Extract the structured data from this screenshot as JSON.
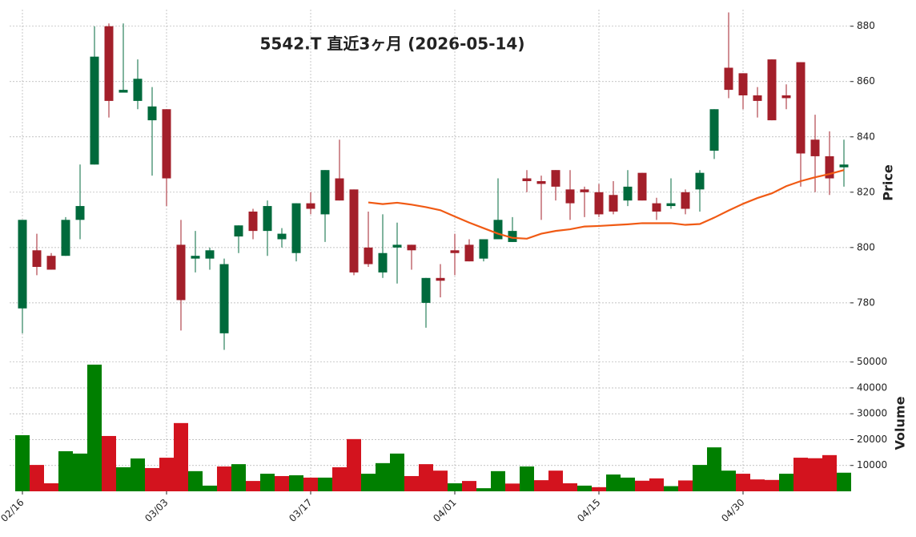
{
  "chart_data": {
    "type": "candlestick",
    "title": "5542.T  直近3ヶ月 (2026-05-14)",
    "ylabel": "Price",
    "categories": [
      "02/16",
      null,
      null,
      null,
      null,
      null,
      null,
      null,
      null,
      null,
      "03/03",
      null,
      null,
      null,
      null,
      null,
      null,
      null,
      null,
      null,
      "03/17",
      null,
      null,
      null,
      null,
      null,
      null,
      null,
      null,
      null,
      "04/01",
      null,
      null,
      null,
      null,
      null,
      null,
      null,
      null,
      null,
      "04/15",
      null,
      null,
      null,
      null,
      null,
      null,
      null,
      null,
      null,
      "04/30",
      null,
      null,
      null,
      null,
      null,
      null,
      null
    ],
    "open": [
      778,
      799,
      797,
      797,
      810,
      830,
      880,
      856,
      853,
      846,
      850,
      801,
      796,
      796,
      769,
      804,
      813,
      806,
      803,
      798,
      816,
      812,
      825,
      821,
      800,
      791,
      800,
      801,
      780,
      789,
      799,
      801,
      796,
      803,
      802,
      825,
      824,
      828,
      821,
      821,
      820,
      819,
      817,
      827,
      816,
      815,
      820,
      821,
      835,
      865,
      863,
      855,
      868,
      855,
      867,
      839,
      833,
      829
    ],
    "high": [
      810,
      805,
      798,
      811,
      830,
      880,
      881,
      881,
      868,
      858,
      850,
      810,
      806,
      800,
      796,
      808,
      814,
      817,
      807,
      816,
      820,
      828,
      839,
      821,
      813,
      812,
      809,
      801,
      789,
      794,
      805,
      803,
      803,
      825,
      811,
      828,
      826,
      828,
      828,
      822,
      823,
      824,
      828,
      827,
      818,
      825,
      821,
      828,
      850,
      885,
      863,
      858,
      868,
      859,
      867,
      848,
      842,
      839
    ],
    "low": [
      769,
      790,
      792,
      797,
      803,
      830,
      847,
      856,
      850,
      826,
      815,
      770,
      791,
      792,
      763,
      798,
      803,
      797,
      800,
      795,
      812,
      802,
      817,
      790,
      793,
      789,
      787,
      792,
      771,
      782,
      790,
      795,
      795,
      803,
      802,
      820,
      810,
      817,
      810,
      811,
      811,
      812,
      815,
      817,
      810,
      814,
      812,
      813,
      832,
      854,
      850,
      847,
      846,
      850,
      822,
      820,
      819,
      822
    ],
    "close": [
      810,
      793,
      792,
      810,
      815,
      869,
      853,
      857,
      861,
      851,
      825,
      781,
      797,
      799,
      794,
      808,
      806,
      815,
      805,
      816,
      814,
      828,
      817,
      791,
      794,
      798,
      801,
      799,
      789,
      788,
      798,
      795,
      803,
      810,
      806,
      824,
      823,
      822,
      816,
      820,
      812,
      813,
      822,
      817,
      813,
      816,
      814,
      827,
      850,
      857,
      855,
      853,
      846,
      854,
      834,
      833,
      825,
      830
    ],
    "up_color": "#006a3c",
    "down_color": "#a31f2a",
    "moving_average": {
      "color": "#f05a14",
      "values": [
        null,
        null,
        null,
        null,
        null,
        null,
        null,
        null,
        null,
        null,
        null,
        null,
        null,
        null,
        null,
        null,
        null,
        null,
        null,
        null,
        null,
        null,
        null,
        null,
        816.3,
        815.7,
        816.2,
        815.5,
        814.6,
        813.5,
        811.2,
        809,
        807,
        805,
        803.5,
        803.2,
        805,
        806,
        806.6,
        807.6,
        807.8,
        808.1,
        808.4,
        808.8,
        808.8,
        808.8,
        808.2,
        808.5,
        810.8,
        813.4,
        815.8,
        817.9,
        819.6,
        822.2,
        824,
        825.4,
        826.6,
        828
      ]
    },
    "ylim": [
      762,
      886
    ],
    "yticks": [
      780,
      800,
      820,
      840,
      860,
      880
    ],
    "grid": true,
    "volume": {
      "ylabel": "Volume",
      "up_color": "#007f00",
      "down_color": "#d3131e",
      "values": [
        21700,
        10200,
        3100,
        15500,
        14600,
        49000,
        21400,
        9300,
        12700,
        9000,
        13000,
        26400,
        7800,
        2200,
        9600,
        10500,
        4000,
        6800,
        5900,
        6200,
        5300,
        5300,
        9300,
        20200,
        6800,
        10900,
        14600,
        5900,
        10500,
        8000,
        3100,
        4000,
        1200,
        7800,
        3000,
        9600,
        4300,
        8000,
        3100,
        2200,
        1600,
        6500,
        5300,
        4100,
        5000,
        2000,
        4200,
        10200,
        17000,
        8000,
        6800,
        4600,
        4400,
        6800,
        13000,
        12800,
        14000,
        7200
      ],
      "ylim": [
        0,
        52700
      ],
      "yticks": [
        10000,
        20000,
        30000,
        40000,
        50000
      ]
    }
  }
}
